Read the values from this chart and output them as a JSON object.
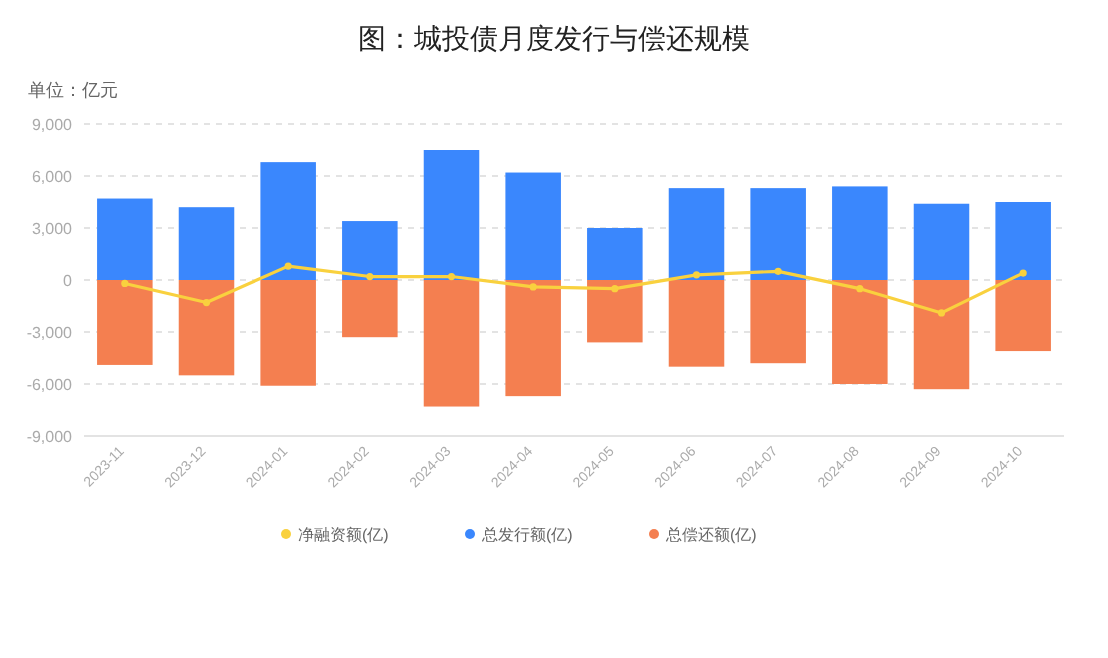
{
  "chart_data": {
    "type": "bar",
    "title": "图：城投债月度发行与偿还规模",
    "annotations": [
      "单位：亿元"
    ],
    "categories": [
      "2023-11",
      "2023-12",
      "2024-01",
      "2024-02",
      "2024-03",
      "2024-04",
      "2024-05",
      "2024-06",
      "2024-07",
      "2024-08",
      "2024-09",
      "2024-10"
    ],
    "stacked": true,
    "series": [
      {
        "name": "净融资额(亿)",
        "type": "line",
        "color": "#f9d13e",
        "marker": "circle",
        "values": [
          -200,
          -1300,
          800,
          200,
          200,
          -400,
          -500,
          300,
          500,
          -500,
          -1900,
          400
        ]
      },
      {
        "name": "总发行额(亿)",
        "color": "#3a87fd",
        "values": [
          4700,
          4200,
          6800,
          3400,
          7500,
          6200,
          3000,
          5300,
          5300,
          5400,
          4400,
          4500
        ]
      },
      {
        "name": "总偿还额(亿)",
        "color": "#f47f50",
        "values": [
          -4900,
          -5500,
          -6100,
          -3300,
          -7300,
          -6700,
          -3600,
          -5000,
          -4800,
          -6000,
          -6300,
          -4100
        ]
      }
    ],
    "ylim": [
      -9000,
      9000
    ],
    "yticks": [
      {
        "value": -9000,
        "label": "-9,000"
      },
      {
        "value": -6000,
        "label": "-6,000"
      },
      {
        "value": -3000,
        "label": "-3,000"
      },
      0,
      {
        "value": 3000,
        "label": "3,000"
      },
      {
        "value": 6000,
        "label": "6,000"
      },
      {
        "value": 9000,
        "label": "9,000"
      }
    ],
    "grid": "y",
    "legend": "bottom"
  }
}
